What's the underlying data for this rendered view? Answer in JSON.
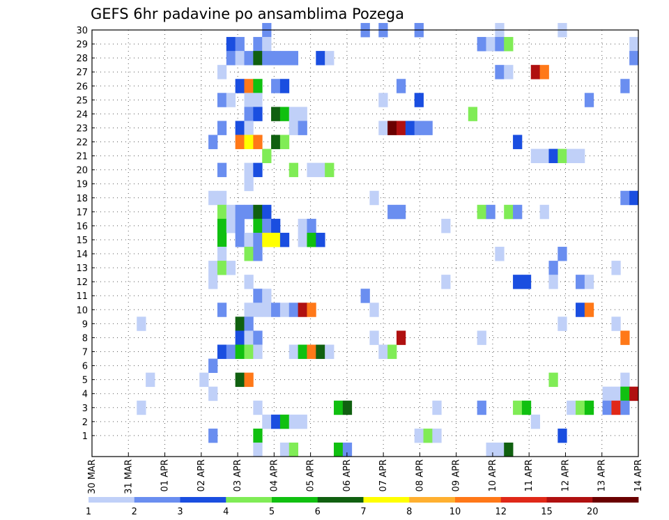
{
  "chart_data": {
    "type": "heatmap",
    "title": "GEFS 6hr padavine po ansamblima Pozega",
    "xlabel": "",
    "ylabel": "",
    "y_categories": [
      "1",
      "2",
      "3",
      "4",
      "5",
      "6",
      "7",
      "8",
      "9",
      "10",
      "11",
      "12",
      "13",
      "14",
      "15",
      "16",
      "17",
      "18",
      "19",
      "20",
      "21",
      "22",
      "23",
      "24",
      "25",
      "26",
      "27",
      "28",
      "29",
      "30"
    ],
    "x_ticks": [
      "30 MAR",
      "31 MAR",
      "01 APR",
      "02 APR",
      "03 APR",
      "04 APR",
      "05 APR",
      "06 APR",
      "07 APR",
      "08 APR",
      "09 APR",
      "10 APR",
      "11 APR",
      "12 APR",
      "13 APR",
      "14 APR"
    ],
    "x_range": [
      0,
      61
    ],
    "grid": true,
    "legend": {
      "placement": "bottom",
      "labels": [
        "1",
        "2",
        "3",
        "4",
        "5",
        "6",
        "7",
        "8",
        "10",
        "12",
        "15",
        "20"
      ],
      "colors": [
        "#c0d0f8",
        "#6a8ef0",
        "#1a4ee0",
        "#80ec56",
        "#10c010",
        "#106010",
        "#ffff00",
        "#ffb030",
        "#ff7818",
        "#e02818",
        "#b01010",
        "#6a0000"
      ]
    },
    "cells": [
      {
        "m": 30,
        "t": [
          [
            19,
            2
          ],
          [
            30,
            2
          ],
          [
            32,
            2
          ],
          [
            36,
            2
          ],
          [
            45,
            1
          ],
          [
            52,
            1
          ]
        ]
      },
      {
        "m": 29,
        "t": [
          [
            15,
            3
          ],
          [
            16,
            2
          ],
          [
            18,
            2
          ],
          [
            19,
            1
          ],
          [
            43,
            2
          ],
          [
            44,
            1
          ],
          [
            45,
            2
          ],
          [
            46,
            4
          ],
          [
            60,
            1
          ]
        ]
      },
      {
        "m": 28,
        "t": [
          [
            15,
            2
          ],
          [
            16,
            1
          ],
          [
            17,
            2
          ],
          [
            18,
            6
          ],
          [
            19,
            2
          ],
          [
            20,
            2
          ],
          [
            21,
            2
          ],
          [
            22,
            2
          ],
          [
            25,
            3
          ],
          [
            26,
            1
          ],
          [
            60,
            2
          ]
        ]
      },
      {
        "m": 27,
        "t": [
          [
            14,
            1
          ],
          [
            45,
            2
          ],
          [
            46,
            1
          ],
          [
            49,
            11
          ],
          [
            50,
            9
          ]
        ]
      },
      {
        "m": 26,
        "t": [
          [
            16,
            3
          ],
          [
            17,
            9
          ],
          [
            18,
            5
          ],
          [
            20,
            2
          ],
          [
            21,
            3
          ],
          [
            34,
            2
          ],
          [
            59,
            2
          ]
        ]
      },
      {
        "m": 25,
        "t": [
          [
            14,
            2
          ],
          [
            15,
            1
          ],
          [
            17,
            1
          ],
          [
            18,
            1
          ],
          [
            32,
            1
          ],
          [
            36,
            3
          ],
          [
            55,
            2
          ]
        ]
      },
      {
        "m": 24,
        "t": [
          [
            17,
            2
          ],
          [
            18,
            3
          ],
          [
            20,
            6
          ],
          [
            21,
            5
          ],
          [
            22,
            1
          ],
          [
            23,
            1
          ],
          [
            42,
            4
          ]
        ]
      },
      {
        "m": 23,
        "t": [
          [
            14,
            2
          ],
          [
            16,
            3
          ],
          [
            17,
            1
          ],
          [
            22,
            1
          ],
          [
            23,
            2
          ],
          [
            32,
            1
          ],
          [
            33,
            12
          ],
          [
            34,
            11
          ],
          [
            35,
            3
          ],
          [
            36,
            2
          ],
          [
            37,
            2
          ]
        ]
      },
      {
        "m": 22,
        "t": [
          [
            13,
            2
          ],
          [
            16,
            9
          ],
          [
            17,
            7
          ],
          [
            18,
            9
          ],
          [
            20,
            6
          ],
          [
            21,
            4
          ],
          [
            47,
            3
          ]
        ]
      },
      {
        "m": 21,
        "t": [
          [
            19,
            4
          ],
          [
            49,
            1
          ],
          [
            50,
            1
          ],
          [
            51,
            3
          ],
          [
            52,
            4
          ],
          [
            53,
            1
          ],
          [
            54,
            1
          ]
        ]
      },
      {
        "m": 20,
        "t": [
          [
            14,
            2
          ],
          [
            17,
            1
          ],
          [
            18,
            3
          ],
          [
            22,
            4
          ],
          [
            24,
            1
          ],
          [
            25,
            1
          ],
          [
            26,
            4
          ]
        ]
      },
      {
        "m": 19,
        "t": [
          [
            17,
            1
          ]
        ]
      },
      {
        "m": 18,
        "t": [
          [
            13,
            1
          ],
          [
            14,
            1
          ],
          [
            31,
            1
          ],
          [
            59,
            2
          ],
          [
            60,
            3
          ]
        ]
      },
      {
        "m": 17,
        "t": [
          [
            14,
            4
          ],
          [
            15,
            1
          ],
          [
            16,
            2
          ],
          [
            17,
            2
          ],
          [
            18,
            6
          ],
          [
            19,
            3
          ],
          [
            33,
            2
          ],
          [
            34,
            2
          ],
          [
            43,
            4
          ],
          [
            44,
            2
          ],
          [
            46,
            4
          ],
          [
            47,
            2
          ],
          [
            50,
            1
          ]
        ]
      },
      {
        "m": 16,
        "t": [
          [
            14,
            5
          ],
          [
            15,
            1
          ],
          [
            16,
            2
          ],
          [
            18,
            5
          ],
          [
            19,
            2
          ],
          [
            20,
            3
          ],
          [
            23,
            1
          ],
          [
            24,
            2
          ],
          [
            39,
            1
          ]
        ]
      },
      {
        "m": 15,
        "t": [
          [
            14,
            5
          ],
          [
            16,
            2
          ],
          [
            17,
            1
          ],
          [
            18,
            2
          ],
          [
            19,
            7
          ],
          [
            20,
            7
          ],
          [
            21,
            3
          ],
          [
            23,
            1
          ],
          [
            24,
            5
          ],
          [
            25,
            3
          ]
        ]
      },
      {
        "m": 14,
        "t": [
          [
            14,
            1
          ],
          [
            17,
            4
          ],
          [
            18,
            2
          ],
          [
            45,
            1
          ],
          [
            52,
            2
          ]
        ]
      },
      {
        "m": 13,
        "t": [
          [
            13,
            1
          ],
          [
            14,
            4
          ],
          [
            15,
            1
          ],
          [
            51,
            2
          ],
          [
            58,
            1
          ]
        ]
      },
      {
        "m": 12,
        "t": [
          [
            13,
            1
          ],
          [
            17,
            1
          ],
          [
            39,
            1
          ],
          [
            47,
            3
          ],
          [
            48,
            3
          ],
          [
            51,
            1
          ],
          [
            54,
            2
          ],
          [
            55,
            1
          ]
        ]
      },
      {
        "m": 11,
        "t": [
          [
            18,
            2
          ],
          [
            19,
            1
          ],
          [
            30,
            2
          ]
        ]
      },
      {
        "m": 10,
        "t": [
          [
            14,
            2
          ],
          [
            17,
            1
          ],
          [
            18,
            1
          ],
          [
            19,
            1
          ],
          [
            20,
            2
          ],
          [
            21,
            1
          ],
          [
            22,
            2
          ],
          [
            23,
            11
          ],
          [
            24,
            9
          ],
          [
            31,
            1
          ],
          [
            54,
            3
          ],
          [
            55,
            9
          ]
        ]
      },
      {
        "m": 9,
        "t": [
          [
            5,
            1
          ],
          [
            16,
            6
          ],
          [
            17,
            2
          ],
          [
            52,
            1
          ],
          [
            58,
            1
          ]
        ]
      },
      {
        "m": 8,
        "t": [
          [
            16,
            3
          ],
          [
            17,
            1
          ],
          [
            18,
            2
          ],
          [
            31,
            1
          ],
          [
            34,
            11
          ],
          [
            43,
            1
          ],
          [
            59,
            9
          ]
        ]
      },
      {
        "m": 7,
        "t": [
          [
            14,
            3
          ],
          [
            15,
            2
          ],
          [
            16,
            5
          ],
          [
            17,
            4
          ],
          [
            18,
            1
          ],
          [
            22,
            1
          ],
          [
            23,
            5
          ],
          [
            24,
            9
          ],
          [
            25,
            6
          ],
          [
            26,
            1
          ],
          [
            32,
            1
          ],
          [
            33,
            4
          ]
        ]
      },
      {
        "m": 6,
        "t": [
          [
            13,
            2
          ]
        ]
      },
      {
        "m": 5,
        "t": [
          [
            6,
            1
          ],
          [
            12,
            1
          ],
          [
            16,
            6
          ],
          [
            17,
            9
          ],
          [
            51,
            4
          ],
          [
            59,
            1
          ]
        ]
      },
      {
        "m": 4,
        "t": [
          [
            13,
            1
          ],
          [
            57,
            1
          ],
          [
            58,
            1
          ],
          [
            59,
            5
          ],
          [
            60,
            11
          ]
        ]
      },
      {
        "m": 3,
        "t": [
          [
            5,
            1
          ],
          [
            18,
            1
          ],
          [
            27,
            5
          ],
          [
            28,
            6
          ],
          [
            38,
            1
          ],
          [
            43,
            2
          ],
          [
            47,
            4
          ],
          [
            48,
            5
          ],
          [
            53,
            1
          ],
          [
            54,
            4
          ],
          [
            55,
            5
          ],
          [
            57,
            2
          ],
          [
            58,
            10
          ],
          [
            59,
            2
          ]
        ]
      },
      {
        "m": 2,
        "t": [
          [
            19,
            1
          ],
          [
            20,
            3
          ],
          [
            21,
            5
          ],
          [
            22,
            1
          ],
          [
            23,
            1
          ],
          [
            49,
            1
          ]
        ]
      },
      {
        "m": 1,
        "t": [
          [
            13,
            2
          ],
          [
            18,
            5
          ],
          [
            36,
            1
          ],
          [
            37,
            4
          ],
          [
            38,
            1
          ],
          [
            52,
            3
          ]
        ]
      },
      {
        "m": 0,
        "t": [
          [
            18,
            1
          ],
          [
            21,
            1
          ],
          [
            22,
            4
          ],
          [
            27,
            5
          ],
          [
            28,
            2
          ],
          [
            44,
            1
          ],
          [
            45,
            1
          ],
          [
            46,
            6
          ]
        ]
      }
    ]
  }
}
